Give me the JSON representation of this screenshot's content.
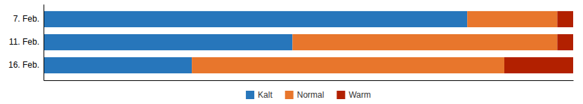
{
  "chart_data": {
    "type": "bar",
    "orientation": "horizontal",
    "stacked": true,
    "categories": [
      "7. Feb.",
      "11. Feb.",
      "16. Feb."
    ],
    "series": [
      {
        "name": "Kalt",
        "color": "#2776BB",
        "values": [
          80,
          47,
          28
        ]
      },
      {
        "name": "Normal",
        "color": "#E8762C",
        "values": [
          17,
          50,
          59
        ]
      },
      {
        "name": "Warm",
        "color": "#B22000",
        "values": [
          3,
          3,
          13
        ]
      }
    ],
    "xlim": [
      0,
      100
    ],
    "tick_labels": "y",
    "grid": false,
    "legend": "bottom"
  }
}
